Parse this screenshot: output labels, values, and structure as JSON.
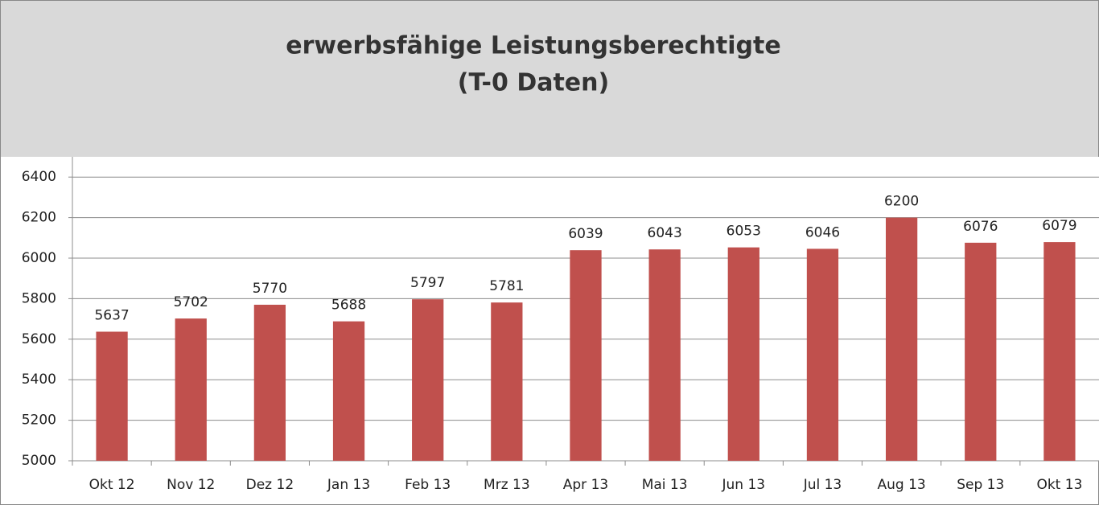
{
  "chart_data": {
    "type": "bar",
    "title": "erwerbsfähige Leistungsberechtigte",
    "subtitle": "(T-0 Daten)",
    "categories": [
      "Okt 12",
      "Nov 12",
      "Dez 12",
      "Jan 13",
      "Feb 13",
      "Mrz 13",
      "Apr 13",
      "Mai 13",
      "Jun 13",
      "Jul 13",
      "Aug 13",
      "Sep 13",
      "Okt 13"
    ],
    "values": [
      5637,
      5702,
      5770,
      5688,
      5797,
      5781,
      6039,
      6043,
      6053,
      6046,
      6200,
      6076,
      6079
    ],
    "color": "#c0504d",
    "ylim": [
      5000,
      6500
    ],
    "yticks": [
      5000,
      5200,
      5400,
      5600,
      5800,
      6000,
      6200,
      6400
    ],
    "grid": true
  }
}
